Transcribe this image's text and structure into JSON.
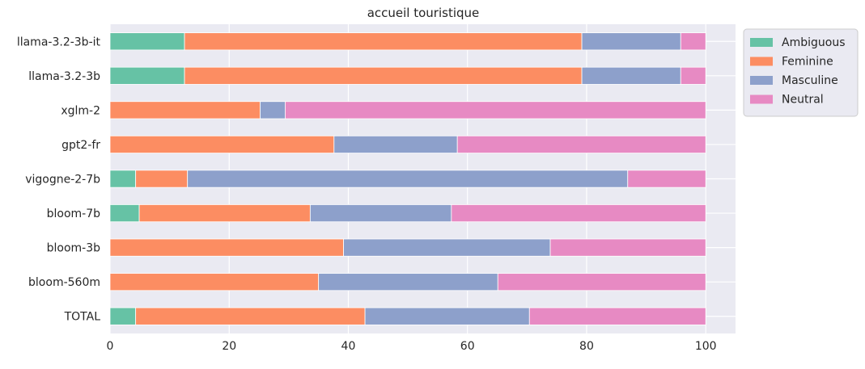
{
  "chart_data": {
    "type": "bar",
    "orientation": "horizontal",
    "stacked": true,
    "title": "accueil touristique",
    "xlabel": "",
    "ylabel": "",
    "xlim": [
      0,
      105
    ],
    "xticks": [
      0,
      20,
      40,
      60,
      80,
      100
    ],
    "grid": true,
    "legend_position": "outside-top-right",
    "categories": [
      "llama-3.2-3b-it",
      "llama-3.2-3b",
      "xglm-2",
      "gpt2-fr",
      "vigogne-2-7b",
      "bloom-7b",
      "bloom-3b",
      "bloom-560m",
      "TOTAL"
    ],
    "series": [
      {
        "name": "Ambiguous",
        "color": "#66c2a5",
        "values": [
          12.5,
          12.5,
          0,
          0,
          4.3,
          4.9,
          0,
          0,
          4.3
        ]
      },
      {
        "name": "Feminine",
        "color": "#fc8d62",
        "values": [
          66.7,
          66.7,
          25.2,
          37.6,
          8.7,
          28.7,
          39.2,
          35.0,
          38.5
        ]
      },
      {
        "name": "Masculine",
        "color": "#8da0cb",
        "values": [
          16.6,
          16.6,
          4.2,
          20.7,
          73.9,
          23.7,
          34.7,
          30.1,
          27.6
        ]
      },
      {
        "name": "Neutral",
        "color": "#e78ac3",
        "values": [
          4.2,
          4.2,
          70.6,
          41.7,
          13.1,
          42.7,
          26.1,
          34.9,
          29.6
        ]
      }
    ]
  }
}
